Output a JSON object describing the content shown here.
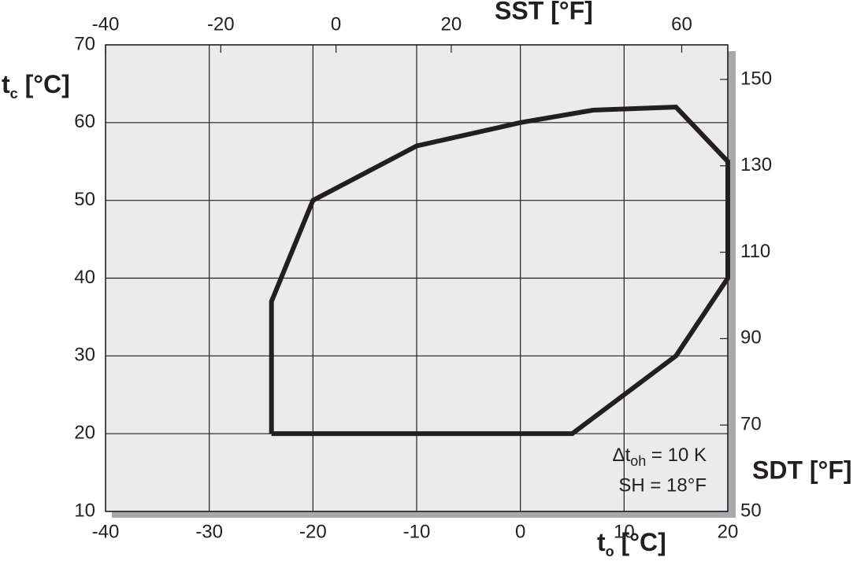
{
  "chart_data": {
    "type": "line",
    "xlabel": {
      "main": "t",
      "sub": "o",
      "unit": " [°C]"
    },
    "ylabel": {
      "main": "t",
      "sub": "c",
      "unit": " [°C]"
    },
    "x2label": "SST [°F]",
    "y2label": "SDT [°F]",
    "x": [
      -24,
      -24,
      -20,
      -10,
      0,
      7,
      15,
      20,
      20,
      15,
      5,
      -24
    ],
    "series": [
      {
        "values": [
          20,
          37,
          50,
          57,
          60,
          61.6,
          62,
          55,
          40,
          30,
          20,
          20
        ],
        "color": "#231f20"
      }
    ],
    "xlim": [
      -40,
      20
    ],
    "xticks": [
      -40,
      -30,
      -20,
      -10,
      0,
      10,
      20
    ],
    "ylim": [
      10,
      70
    ],
    "yticks": [
      10,
      20,
      30,
      40,
      50,
      60,
      70
    ],
    "x2lim": [
      -40,
      68
    ],
    "x2ticks": [
      -40,
      -20,
      0,
      20,
      60
    ],
    "y2lim": [
      50,
      158
    ],
    "y2ticks": [
      50,
      70,
      90,
      110,
      130,
      150
    ],
    "annotations": [
      {
        "main": "Δt",
        "sub": "oh",
        "rest": " = 10 K"
      },
      {
        "main": "SH = 18°F"
      }
    ],
    "grid": true
  }
}
